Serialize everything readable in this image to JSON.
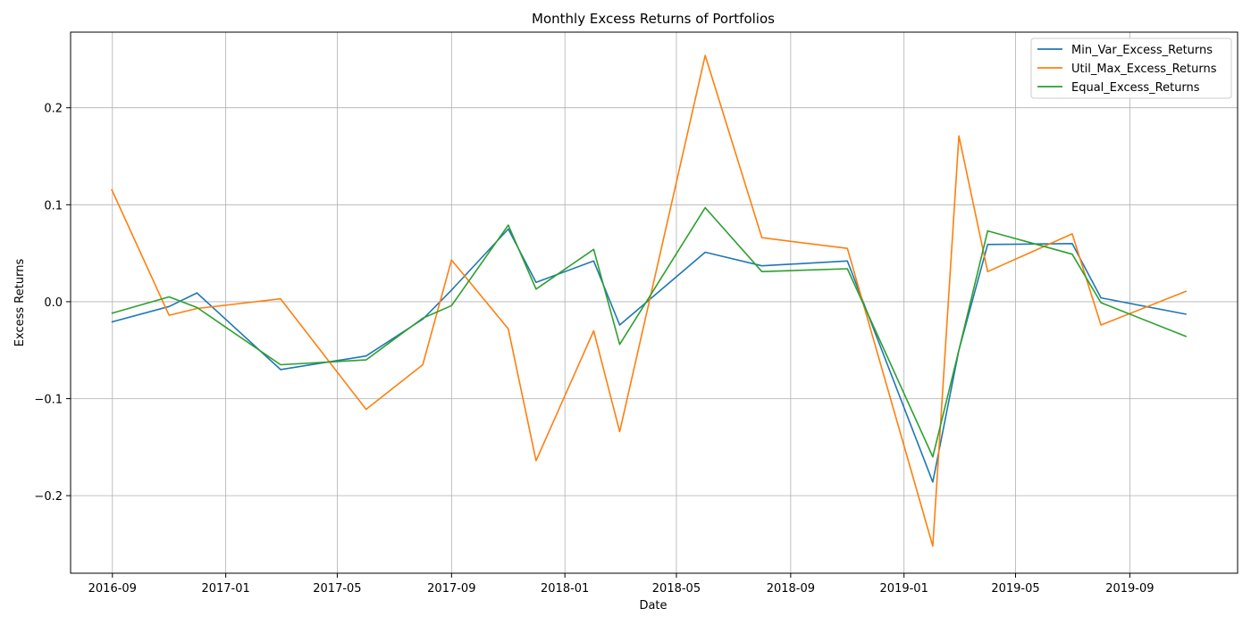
{
  "chart_data": {
    "type": "line",
    "title": "Monthly Excess Returns of Portfolios",
    "xlabel": "Date",
    "ylabel": "Excess Returns",
    "x_type": "date",
    "xlim": [
      "2016-07-18",
      "2019-12-26"
    ],
    "ylim": [
      -0.28,
      0.278
    ],
    "grid": true,
    "legend_position": "top-right",
    "x_ticks": [
      "2016-09",
      "2017-01",
      "2017-05",
      "2017-09",
      "2018-01",
      "2018-05",
      "2018-09",
      "2019-01",
      "2019-05",
      "2019-09"
    ],
    "y_ticks": [
      {
        "value": -0.2,
        "label": "−0.2"
      },
      {
        "value": -0.1,
        "label": "−0.1"
      },
      {
        "value": 0.0,
        "label": "0.0"
      },
      {
        "value": 0.1,
        "label": "0.1"
      },
      {
        "value": 0.2,
        "label": "0.2"
      }
    ],
    "x": [
      "2016-08-31",
      "2016-11-01",
      "2016-12-01",
      "2017-03-01",
      "2017-06-01",
      "2017-08-01",
      "2017-09-01",
      "2017-11-01",
      "2017-12-01",
      "2018-02-01",
      "2018-03-01",
      "2018-06-01",
      "2018-08-01",
      "2018-11-01",
      "2019-02-01",
      "2019-03-01",
      "2019-04-01",
      "2019-07-01",
      "2019-08-01",
      "2019-11-01"
    ],
    "series": [
      {
        "name": "Min_Var_Excess_Returns",
        "color": "#1f77b4",
        "values": [
          -0.021,
          -0.005,
          0.009,
          -0.07,
          -0.056,
          -0.018,
          0.012,
          0.075,
          0.02,
          0.042,
          -0.024,
          0.051,
          0.037,
          0.042,
          -0.186,
          -0.05,
          0.059,
          0.06,
          0.004,
          -0.013
        ]
      },
      {
        "name": "Util_Max_Excess_Returns",
        "color": "#ff7f0e",
        "values": [
          0.116,
          -0.014,
          -0.007,
          0.003,
          -0.111,
          -0.065,
          0.043,
          -0.028,
          -0.164,
          -0.03,
          -0.134,
          0.254,
          0.066,
          0.055,
          -0.252,
          0.171,
          0.031,
          0.07,
          -0.024,
          0.011
        ]
      },
      {
        "name": "Equal_Excess_Returns",
        "color": "#2ca02c",
        "values": [
          -0.012,
          0.005,
          -0.006,
          -0.065,
          -0.06,
          -0.017,
          -0.004,
          0.079,
          0.013,
          0.054,
          -0.044,
          0.097,
          0.031,
          0.034,
          -0.16,
          -0.05,
          0.073,
          0.049,
          -0.001,
          -0.036
        ]
      }
    ]
  }
}
